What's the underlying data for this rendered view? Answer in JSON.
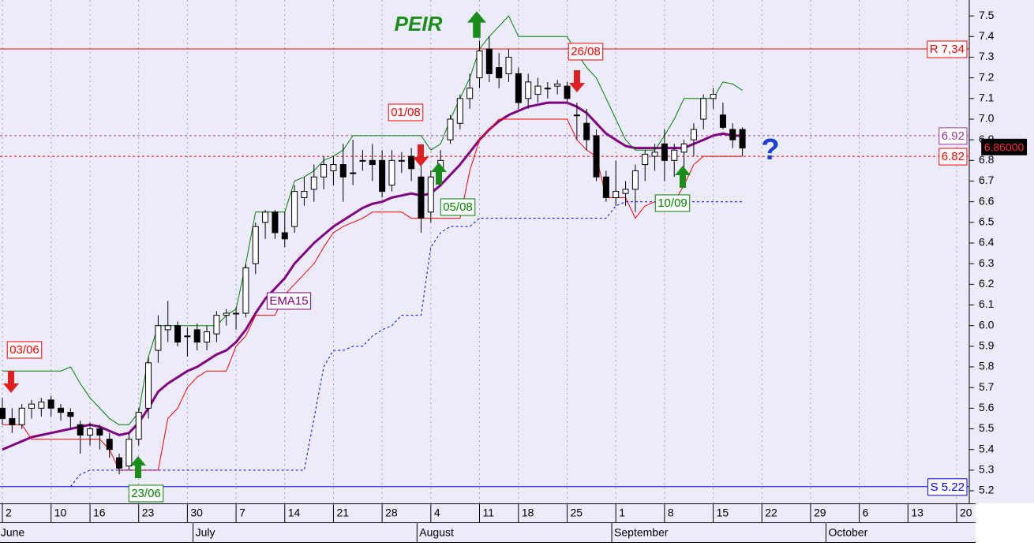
{
  "chart_data": {
    "type": "candlestick",
    "title": "PEIR",
    "categories": [
      "2",
      null,
      null,
      null,
      null,
      "10",
      null,
      null,
      null,
      "16",
      null,
      null,
      null,
      null,
      "23",
      null,
      null,
      null,
      null,
      "30",
      null,
      null,
      null,
      null,
      "7",
      null,
      null,
      null,
      null,
      "14",
      null,
      null,
      null,
      null,
      "21",
      null,
      null,
      null,
      null,
      "28",
      null,
      null,
      null,
      null,
      "4",
      null,
      null,
      null,
      null,
      "11",
      null,
      null,
      null,
      "18",
      null,
      null,
      null,
      null,
      "25",
      null,
      null,
      null,
      null,
      "1",
      null,
      null,
      null,
      null,
      "8",
      null,
      null,
      null,
      null,
      "15",
      null,
      null,
      null,
      null,
      "22",
      null,
      null,
      null,
      null,
      "29",
      null,
      null,
      null,
      null,
      "6",
      null,
      null,
      null,
      null,
      "13",
      null,
      null,
      null,
      null,
      "20"
    ],
    "month_categories": [
      "June",
      null,
      null,
      null,
      null,
      null,
      null,
      null,
      null,
      null,
      null,
      null,
      null,
      null,
      null,
      null,
      null,
      null,
      null,
      null,
      "July",
      null,
      null,
      null,
      null,
      null,
      null,
      null,
      null,
      null,
      null,
      null,
      null,
      null,
      null,
      null,
      null,
      null,
      null,
      null,
      null,
      null,
      null,
      "August",
      null,
      null,
      null,
      null,
      null,
      null,
      null,
      null,
      null,
      null,
      null,
      null,
      null,
      null,
      null,
      null,
      null,
      null,
      null,
      "September",
      null,
      null,
      null,
      null,
      null,
      null,
      null,
      null,
      null,
      null,
      null,
      null,
      null,
      null,
      null,
      null,
      null,
      null,
      null,
      null,
      null,
      "October",
      null,
      null,
      null,
      null,
      null,
      null,
      null,
      null,
      null,
      null,
      null,
      null,
      null
    ],
    "ohlc": {
      "up_color": "#ffffff",
      "down_color": "#000000",
      "open": [
        5.6,
        5.55,
        5.52,
        5.6,
        5.6,
        5.64,
        5.6,
        5.58,
        5.52,
        5.47,
        5.5,
        5.45,
        5.36,
        5.32,
        5.45,
        5.6,
        5.88,
        5.98,
        6.0,
        5.95,
        5.98,
        5.92,
        5.96,
        6.05,
        6.06,
        6.06,
        6.3,
        6.5,
        6.55,
        6.45,
        6.48,
        6.62,
        6.66,
        6.72,
        6.75,
        6.78,
        6.74,
        6.8,
        6.8,
        6.8,
        6.68,
        6.8,
        6.82,
        6.72,
        6.55,
        6.75,
        6.9,
        6.98,
        7.1,
        7.2,
        7.34,
        7.25,
        7.22,
        7.22,
        7.1,
        7.12,
        7.15,
        7.16,
        7.16,
        7.02,
        6.98,
        6.92,
        6.72,
        6.62,
        6.64,
        6.66,
        6.78,
        6.82,
        6.88,
        6.8,
        6.84,
        6.9,
        7.0,
        7.1,
        7.02,
        6.95,
        6.95,
        null,
        null,
        null,
        null,
        null,
        null,
        null,
        null,
        null,
        null,
        null,
        null,
        null,
        null,
        null,
        null,
        null,
        null,
        null,
        null,
        null,
        null
      ],
      "high": [
        5.65,
        5.6,
        5.62,
        5.64,
        5.65,
        5.66,
        5.62,
        5.6,
        5.54,
        5.53,
        5.52,
        5.48,
        5.38,
        5.48,
        5.6,
        5.85,
        6.05,
        6.12,
        6.02,
        5.99,
        6.01,
        6.0,
        6.07,
        6.08,
        6.09,
        6.3,
        6.5,
        6.56,
        6.56,
        6.55,
        6.68,
        6.72,
        6.78,
        6.82,
        6.82,
        6.88,
        6.9,
        6.85,
        6.88,
        6.85,
        6.85,
        6.84,
        6.86,
        6.8,
        6.75,
        6.85,
        7.02,
        7.12,
        7.22,
        7.38,
        7.4,
        7.32,
        7.34,
        7.25,
        7.22,
        7.2,
        7.18,
        7.19,
        7.18,
        7.08,
        7.05,
        6.95,
        6.75,
        6.8,
        6.7,
        6.78,
        6.85,
        6.88,
        6.95,
        6.88,
        6.9,
        6.98,
        7.12,
        7.15,
        7.08,
        6.98,
        6.96,
        null,
        null,
        null,
        null,
        null,
        null,
        null,
        null,
        null,
        null,
        null,
        null,
        null,
        null,
        null,
        null,
        null,
        null,
        null,
        null,
        null,
        null
      ],
      "low": [
        5.52,
        5.48,
        5.5,
        5.55,
        5.56,
        5.56,
        5.54,
        5.5,
        5.38,
        5.42,
        5.4,
        5.36,
        5.28,
        5.3,
        5.42,
        5.55,
        5.82,
        5.92,
        5.9,
        5.85,
        5.88,
        5.88,
        5.92,
        6.0,
        5.98,
        6.04,
        6.25,
        6.42,
        6.42,
        6.38,
        6.45,
        6.58,
        6.6,
        6.66,
        6.68,
        6.6,
        6.68,
        6.75,
        6.7,
        6.62,
        6.65,
        6.74,
        6.7,
        6.45,
        6.5,
        6.7,
        6.88,
        6.95,
        7.05,
        7.15,
        7.18,
        7.15,
        7.18,
        7.05,
        7.05,
        7.08,
        7.1,
        7.12,
        7.08,
        6.9,
        6.85,
        6.7,
        6.6,
        6.58,
        6.58,
        6.55,
        6.7,
        6.75,
        6.7,
        6.72,
        6.75,
        6.82,
        6.95,
        7.05,
        6.95,
        6.86,
        6.82,
        null,
        null,
        null,
        null,
        null,
        null,
        null,
        null,
        null,
        null,
        null,
        null,
        null,
        null,
        null,
        null,
        null,
        null,
        null,
        null,
        null,
        null
      ],
      "close": [
        5.55,
        5.52,
        5.6,
        5.62,
        5.63,
        5.6,
        5.58,
        5.56,
        5.47,
        5.5,
        5.47,
        5.4,
        5.31,
        5.45,
        5.58,
        5.82,
        6.0,
        6.0,
        5.92,
        5.95,
        5.92,
        5.97,
        6.05,
        6.06,
        6.06,
        6.28,
        6.48,
        6.55,
        6.45,
        6.42,
        6.65,
        6.65,
        6.72,
        6.78,
        6.78,
        6.72,
        6.74,
        6.8,
        6.78,
        6.65,
        6.8,
        6.8,
        6.76,
        6.52,
        6.72,
        6.8,
        7.0,
        7.1,
        7.15,
        7.33,
        7.22,
        7.2,
        7.3,
        7.08,
        7.18,
        7.16,
        7.15,
        7.17,
        7.1,
        7.02,
        6.9,
        6.72,
        6.62,
        6.65,
        6.66,
        6.75,
        6.83,
        6.84,
        6.8,
        6.85,
        6.88,
        6.95,
        7.1,
        7.12,
        6.96,
        6.9,
        6.86,
        null,
        null,
        null,
        null,
        null,
        null,
        null,
        null,
        null,
        null,
        null,
        null,
        null,
        null,
        null,
        null,
        null,
        null,
        null,
        null,
        null,
        null
      ]
    },
    "series": [
      {
        "name": "EMA15",
        "color": "#800080",
        "width": 3,
        "dashed": false,
        "values": [
          5.4,
          5.42,
          5.44,
          5.46,
          5.47,
          5.48,
          5.49,
          5.5,
          5.51,
          5.52,
          5.51,
          5.49,
          5.47,
          5.48,
          5.53,
          5.6,
          5.68,
          5.72,
          5.75,
          5.78,
          5.8,
          5.83,
          5.86,
          5.88,
          5.92,
          5.98,
          6.06,
          6.13,
          6.18,
          6.23,
          6.3,
          6.35,
          6.4,
          6.44,
          6.48,
          6.51,
          6.54,
          6.57,
          6.59,
          6.6,
          6.62,
          6.63,
          6.64,
          6.63,
          6.64,
          6.68,
          6.73,
          6.78,
          6.84,
          6.9,
          6.95,
          6.99,
          7.02,
          7.04,
          7.06,
          7.07,
          7.08,
          7.08,
          7.08,
          7.06,
          7.03,
          6.98,
          6.93,
          6.9,
          6.87,
          6.86,
          6.86,
          6.86,
          6.86,
          6.86,
          6.86,
          6.88,
          6.9,
          6.92,
          6.93,
          6.92,
          6.92,
          null,
          null,
          null,
          null,
          null,
          null,
          null,
          null,
          null,
          null,
          null,
          null,
          null,
          null,
          null,
          null,
          null,
          null,
          null,
          null,
          null,
          null
        ]
      },
      {
        "color": "#008000",
        "width": 1,
        "dashed": false,
        "values": [
          5.78,
          5.78,
          5.78,
          5.78,
          5.78,
          5.78,
          5.78,
          5.8,
          5.72,
          5.65,
          5.6,
          5.55,
          5.52,
          5.52,
          5.58,
          5.85,
          6.0,
          6.0,
          6.0,
          6.0,
          6.0,
          6.0,
          6.0,
          6.05,
          6.08,
          6.3,
          6.55,
          6.55,
          6.55,
          6.55,
          6.7,
          6.72,
          6.75,
          6.8,
          6.82,
          6.85,
          6.92,
          6.92,
          6.92,
          6.92,
          6.92,
          6.92,
          6.92,
          6.92,
          6.85,
          6.88,
          7.0,
          7.1,
          7.2,
          7.34,
          7.4,
          7.45,
          7.5,
          7.4,
          7.4,
          7.4,
          7.4,
          7.4,
          7.4,
          7.32,
          7.25,
          7.2,
          7.1,
          7.0,
          6.9,
          6.85,
          6.85,
          6.85,
          6.92,
          7.0,
          7.1,
          7.1,
          7.1,
          7.1,
          7.18,
          7.17,
          7.14,
          null,
          null,
          null,
          null,
          null,
          null,
          null,
          null,
          null,
          null,
          null,
          null,
          null,
          null,
          null,
          null,
          null,
          null,
          null,
          null,
          null,
          null
        ]
      },
      {
        "color": "#ff0000",
        "width": 1,
        "dashed": false,
        "values": [
          5.52,
          5.52,
          5.52,
          5.45,
          5.45,
          5.45,
          5.45,
          5.45,
          5.45,
          5.45,
          5.45,
          5.4,
          5.3,
          5.3,
          5.3,
          5.3,
          5.3,
          5.55,
          5.6,
          5.7,
          5.75,
          5.78,
          5.78,
          5.78,
          5.9,
          5.95,
          6.05,
          6.05,
          6.05,
          6.15,
          6.2,
          6.25,
          6.3,
          6.38,
          6.45,
          6.48,
          6.5,
          6.52,
          6.55,
          6.55,
          6.55,
          6.55,
          6.52,
          6.52,
          6.52,
          6.52,
          6.52,
          6.52,
          6.75,
          6.9,
          6.95,
          7.0,
          7.0,
          7.0,
          7.0,
          7.0,
          7.0,
          7.0,
          7.0,
          6.9,
          6.85,
          6.82,
          6.62,
          6.62,
          6.62,
          6.52,
          6.58,
          6.6,
          6.6,
          6.6,
          6.68,
          6.78,
          6.82,
          6.82,
          6.82,
          6.82,
          6.82,
          null,
          null,
          null,
          null,
          null,
          null,
          null,
          null,
          null,
          null,
          null,
          null,
          null,
          null,
          null,
          null,
          null,
          null,
          null,
          null,
          null,
          null
        ]
      },
      {
        "color": "#0000ff",
        "width": 1,
        "dashed": true,
        "values": [
          null,
          null,
          null,
          null,
          null,
          null,
          null,
          5.22,
          5.28,
          5.3,
          5.3,
          5.3,
          5.3,
          5.3,
          5.3,
          5.3,
          5.3,
          5.3,
          5.3,
          5.3,
          5.3,
          5.3,
          5.3,
          5.3,
          5.3,
          5.3,
          5.3,
          5.3,
          5.3,
          5.3,
          5.3,
          5.3,
          5.55,
          5.8,
          5.88,
          5.88,
          5.9,
          5.9,
          5.95,
          5.98,
          6.0,
          6.05,
          6.05,
          6.05,
          6.38,
          6.45,
          6.48,
          6.48,
          6.48,
          6.52,
          6.52,
          6.52,
          6.52,
          6.52,
          6.52,
          6.52,
          6.52,
          6.52,
          6.52,
          6.52,
          6.52,
          6.52,
          6.52,
          6.58,
          6.6,
          6.6,
          6.6,
          6.6,
          6.6,
          6.6,
          6.6,
          6.6,
          6.6,
          6.6,
          6.6,
          6.6,
          6.6,
          null,
          null,
          null,
          null,
          null,
          null,
          null,
          null,
          null,
          null,
          null,
          null,
          null,
          null,
          null,
          null,
          null,
          null,
          null,
          null,
          null,
          null
        ]
      }
    ],
    "levels": [
      {
        "value": 7.34,
        "label": "R 7,34",
        "color": "#ff0000",
        "dashed": false
      },
      {
        "value": 6.92,
        "label": "6.92",
        "color": "#993399",
        "dashed": true
      },
      {
        "value": 6.82,
        "label": "6.82",
        "color": "#ff0000",
        "dashed": true
      },
      {
        "value": 5.22,
        "label": "S 5.22",
        "color": "#0000ff",
        "dashed": false
      }
    ],
    "last_price": {
      "value": 6.86,
      "label": "6.86000"
    },
    "annotations": [
      {
        "text": "03/06",
        "color": "#ff0000"
      },
      {
        "text": "23/06",
        "color": "#008000"
      },
      {
        "text": "01/08",
        "color": "#ff0000"
      },
      {
        "text": "05/08",
        "color": "#008000"
      },
      {
        "text": "26/08",
        "color": "#ff0000"
      },
      {
        "text": "10/09",
        "color": "#008000"
      },
      {
        "text": "EMA15",
        "color": "#800080"
      },
      {
        "text": "?",
        "color": "#1a3fd6"
      }
    ],
    "ylim": [
      5.139,
      7.577
    ],
    "yticks": [
      5.2,
      5.3,
      5.4,
      5.5,
      5.6,
      5.7,
      5.8,
      5.9,
      {
        "value": 6,
        "label": "6.0"
      },
      6.1,
      6.2,
      6.3,
      6.4,
      6.5,
      6.6,
      6.7,
      6.8,
      6.9,
      {
        "value": 7,
        "label": "7.0"
      },
      7.1,
      7.2,
      7.3,
      7.4,
      7.5
    ],
    "grid": true
  }
}
